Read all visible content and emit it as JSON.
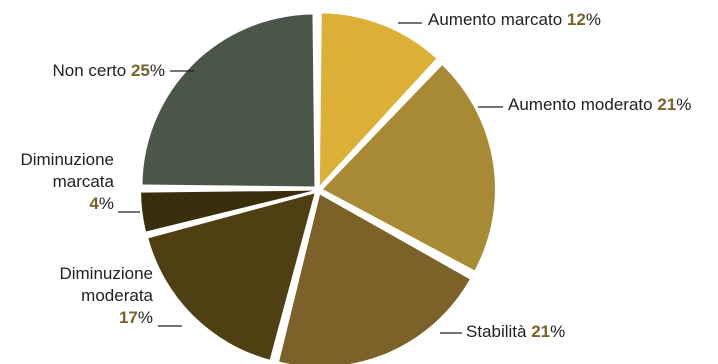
{
  "chart_data": {
    "type": "pie",
    "unit": "%",
    "accent_color": "#7a6328",
    "slices": [
      {
        "label_lines": [
          "Aumento marcato"
        ],
        "value": 12,
        "color": "#dcb037"
      },
      {
        "label_lines": [
          "Aumento moderato"
        ],
        "value": 21,
        "color": "#a88a35"
      },
      {
        "label_lines": [
          "Stabilità"
        ],
        "value": 21,
        "color": "#7c6228"
      },
      {
        "label_lines": [
          "Diminuzione",
          "moderata"
        ],
        "value": 17,
        "color": "#4f4014"
      },
      {
        "label_lines": [
          "Diminuzione",
          "marcata"
        ],
        "value": 4,
        "color": "#3a2f0c"
      },
      {
        "label_lines": [
          "Non certo"
        ],
        "value": 25,
        "color": "#4b5648"
      }
    ]
  }
}
